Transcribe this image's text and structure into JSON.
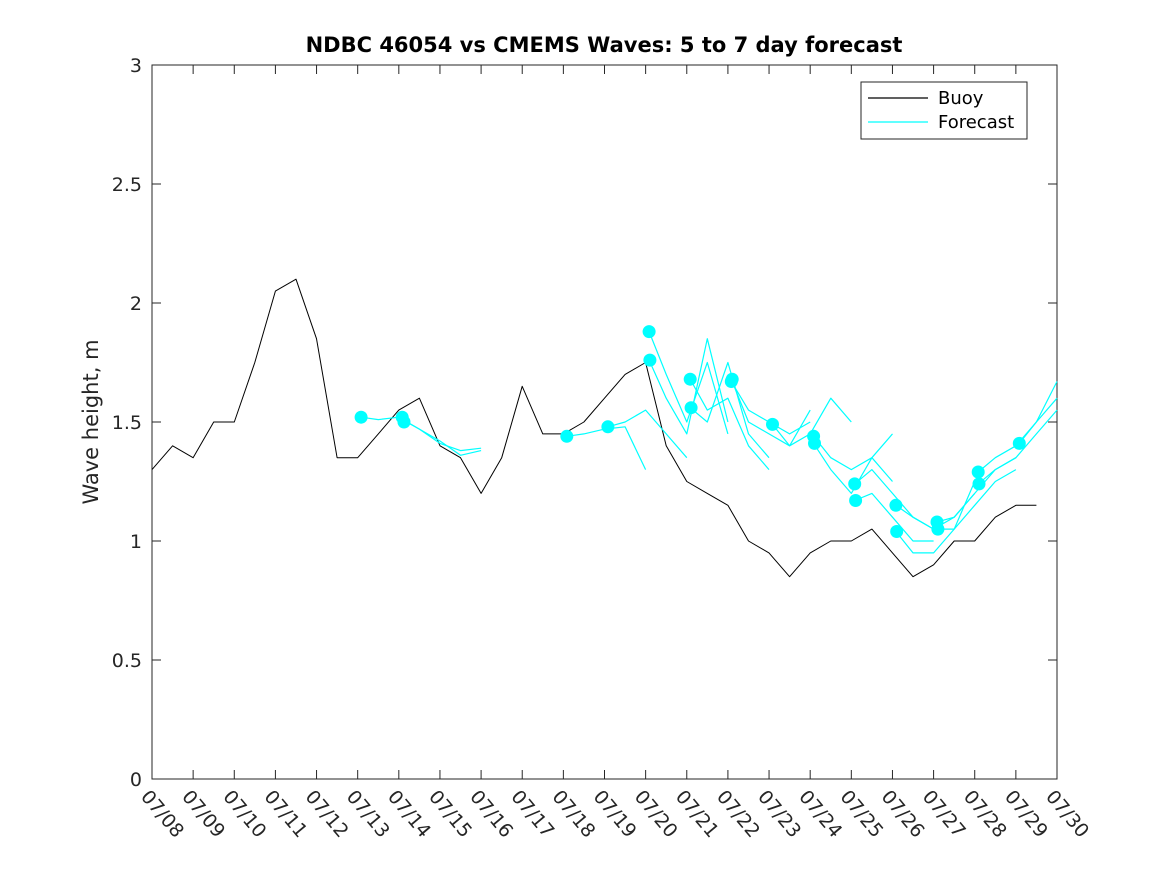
{
  "chart_data": {
    "type": "line",
    "title": "NDBC 46054 vs CMEMS Waves: 5 to 7 day forecast",
    "xlabel": "",
    "ylabel": "Wave height, m",
    "xlim": [
      "07/08",
      "07/30"
    ],
    "ylim": [
      0,
      3
    ],
    "x_ticks": [
      "07/08",
      "07/09",
      "07/10",
      "07/11",
      "07/12",
      "07/13",
      "07/14",
      "07/15",
      "07/16",
      "07/17",
      "07/18",
      "07/19",
      "07/20",
      "07/21",
      "07/22",
      "07/23",
      "07/24",
      "07/25",
      "07/26",
      "07/27",
      "07/28",
      "07/29",
      "07/30"
    ],
    "y_ticks": [
      "0",
      "0.5",
      "1",
      "1.5",
      "2",
      "2.5",
      "3"
    ],
    "legend": {
      "placement": "top-right",
      "entries": [
        "Buoy",
        "Forecast"
      ]
    },
    "colors": {
      "buoy": "#000000",
      "forecast": "#00ffff"
    },
    "series": [
      {
        "name": "Buoy",
        "x": [
          "07/08 00:00",
          "07/08 12:00",
          "07/09 00:00",
          "07/09 12:00",
          "07/10 00:00",
          "07/10 12:00",
          "07/11 00:00",
          "07/11 12:00",
          "07/12 00:00",
          "07/12 12:00",
          "07/13 00:00",
          "07/13 12:00",
          "07/14 00:00",
          "07/14 12:00",
          "07/15 00:00",
          "07/15 12:00",
          "07/16 00:00",
          "07/16 12:00",
          "07/17 00:00",
          "07/17 12:00",
          "07/18 00:00",
          "07/18 12:00",
          "07/19 00:00",
          "07/19 12:00",
          "07/20 00:00",
          "07/20 12:00",
          "07/21 00:00",
          "07/21 12:00",
          "07/22 00:00",
          "07/22 12:00",
          "07/23 00:00",
          "07/23 12:00",
          "07/24 00:00",
          "07/24 12:00",
          "07/25 00:00",
          "07/25 12:00",
          "07/26 00:00",
          "07/26 12:00",
          "07/27 00:00",
          "07/27 12:00",
          "07/28 00:00",
          "07/28 12:00",
          "07/29 00:00",
          "07/29 12:00"
        ],
        "y": [
          1.3,
          1.4,
          1.35,
          1.5,
          1.5,
          1.75,
          2.05,
          2.1,
          1.85,
          1.35,
          1.35,
          1.45,
          1.55,
          1.6,
          1.4,
          1.35,
          1.2,
          1.35,
          1.65,
          1.45,
          1.45,
          1.5,
          1.6,
          1.7,
          1.75,
          1.4,
          1.25,
          1.2,
          1.15,
          1.0,
          0.95,
          0.85,
          0.95,
          1.0,
          1.0,
          1.05,
          0.95,
          0.85,
          0.9,
          1.0,
          1.0,
          1.1,
          1.15,
          1.15
        ]
      },
      {
        "name": "",
        "x": [
          "07/13 02:00",
          "07/13 12:00",
          "07/14 00:00",
          "07/14 12:00",
          "07/15 00:00",
          "07/15 12:00",
          "07/16 00:00"
        ],
        "y": [
          1.52,
          1.51,
          1.52,
          1.47,
          1.42,
          1.36,
          1.38
        ]
      },
      {
        "name": "",
        "x": [
          "07/14 02:00",
          "07/14 12:00",
          "07/15 00:00",
          "07/15 12:00",
          "07/16 00:00"
        ],
        "y": [
          1.51,
          1.47,
          1.41,
          1.38,
          1.39
        ]
      },
      {
        "name": "",
        "x": [
          "07/18 02:00",
          "07/18 12:00",
          "07/19 00:00",
          "07/19 12:00",
          "07/20 00:00"
        ],
        "y": [
          1.44,
          1.45,
          1.47,
          1.48,
          1.3
        ]
      },
      {
        "name": "",
        "x": [
          "07/19 02:00",
          "07/19 12:00",
          "07/20 00:00",
          "07/20 12:00",
          "07/21 00:00"
        ],
        "y": [
          1.48,
          1.5,
          1.55,
          1.45,
          1.35
        ]
      },
      {
        "name": "",
        "x": [
          "07/20 02:00",
          "07/20 12:00",
          "07/21 00:00",
          "07/21 12:00",
          "07/22 00:00"
        ],
        "y": [
          1.88,
          1.7,
          1.5,
          1.75,
          1.45
        ]
      },
      {
        "name": "",
        "x": [
          "07/20 02:00",
          "07/20 12:00",
          "07/21 00:00",
          "07/21 12:00",
          "07/22 00:00"
        ],
        "y": [
          1.76,
          1.6,
          1.45,
          1.85,
          1.5
        ]
      },
      {
        "name": "",
        "x": [
          "07/21 02:00",
          "07/21 12:00",
          "07/22 00:00",
          "07/22 12:00",
          "07/23 00:00"
        ],
        "y": [
          1.68,
          1.55,
          1.6,
          1.4,
          1.3
        ]
      },
      {
        "name": "",
        "x": [
          "07/21 02:00",
          "07/21 12:00",
          "07/22 00:00",
          "07/22 12:00",
          "07/23 00:00"
        ],
        "y": [
          1.56,
          1.5,
          1.75,
          1.45,
          1.35
        ]
      },
      {
        "name": "",
        "x": [
          "07/22 02:00",
          "07/22 12:00",
          "07/23 00:00",
          "07/23 12:00",
          "07/24 00:00"
        ],
        "y": [
          1.67,
          1.55,
          1.5,
          1.45,
          1.5
        ]
      },
      {
        "name": "",
        "x": [
          "07/22 02:00",
          "07/22 12:00",
          "07/23 00:00",
          "07/23 12:00",
          "07/24 00:00"
        ],
        "y": [
          1.68,
          1.5,
          1.45,
          1.4,
          1.55
        ]
      },
      {
        "name": "",
        "x": [
          "07/23 02:00",
          "07/23 12:00",
          "07/24 00:00",
          "07/24 12:00",
          "07/25 00:00"
        ],
        "y": [
          1.49,
          1.4,
          1.45,
          1.6,
          1.5
        ]
      },
      {
        "name": "",
        "x": [
          "07/24 02:00",
          "07/24 12:00",
          "07/25 00:00",
          "07/25 12:00",
          "07/26 00:00"
        ],
        "y": [
          1.44,
          1.35,
          1.3,
          1.35,
          1.45
        ]
      },
      {
        "name": "",
        "x": [
          "07/24 02:00",
          "07/24 12:00",
          "07/25 00:00",
          "07/25 12:00",
          "07/26 00:00"
        ],
        "y": [
          1.41,
          1.3,
          1.2,
          1.35,
          1.25
        ]
      },
      {
        "name": "",
        "x": [
          "07/25 02:00",
          "07/25 12:00",
          "07/26 00:00",
          "07/26 12:00",
          "07/27 00:00"
        ],
        "y": [
          1.24,
          1.3,
          1.2,
          1.1,
          1.05
        ]
      },
      {
        "name": "",
        "x": [
          "07/25 02:00",
          "07/25 12:00",
          "07/26 00:00",
          "07/26 12:00",
          "07/27 00:00"
        ],
        "y": [
          1.17,
          1.2,
          1.1,
          1.0,
          1.0
        ]
      },
      {
        "name": "",
        "x": [
          "07/26 02:00",
          "07/26 12:00",
          "07/27 00:00",
          "07/27 12:00",
          "07/28 00:00"
        ],
        "y": [
          1.15,
          1.1,
          1.05,
          1.1,
          1.2
        ]
      },
      {
        "name": "",
        "x": [
          "07/26 02:00",
          "07/26 12:00",
          "07/27 00:00",
          "07/27 12:00",
          "07/28 00:00"
        ],
        "y": [
          1.04,
          0.95,
          0.95,
          1.05,
          1.25
        ]
      },
      {
        "name": "",
        "x": [
          "07/27 02:00",
          "07/27 12:00",
          "07/28 00:00",
          "07/28 12:00",
          "07/29 00:00"
        ],
        "y": [
          1.08,
          1.1,
          1.2,
          1.3,
          1.35
        ]
      },
      {
        "name": "",
        "x": [
          "07/27 02:00",
          "07/27 12:00",
          "07/28 00:00",
          "07/28 12:00",
          "07/29 00:00"
        ],
        "y": [
          1.05,
          1.05,
          1.15,
          1.25,
          1.3
        ]
      },
      {
        "name": "",
        "x": [
          "07/28 02:00",
          "07/28 12:00",
          "07/29 00:00",
          "07/29 12:00",
          "07/30 00:00"
        ],
        "y": [
          1.29,
          1.35,
          1.4,
          1.5,
          1.6
        ]
      },
      {
        "name": "",
        "x": [
          "07/28 02:00",
          "07/28 12:00",
          "07/29 00:00",
          "07/29 12:00",
          "07/30 00:00"
        ],
        "y": [
          1.24,
          1.3,
          1.35,
          1.45,
          1.55
        ]
      },
      {
        "name": "",
        "x": [
          "07/29 02:00",
          "07/29 12:00",
          "07/30 00:00"
        ],
        "y": [
          1.41,
          1.5,
          1.67
        ]
      }
    ],
    "markers": {
      "name": "Forecast",
      "x": [
        "07/13 02:00",
        "07/14 02:00",
        "07/14 03:00",
        "07/18 02:00",
        "07/19 02:00",
        "07/20 02:00",
        "07/20 02:30",
        "07/21 02:00",
        "07/21 02:30",
        "07/22 02:00",
        "07/22 02:30",
        "07/23 02:00",
        "07/24 02:00",
        "07/24 02:30",
        "07/25 02:00",
        "07/25 02:30",
        "07/26 02:00",
        "07/26 02:30",
        "07/27 02:00",
        "07/27 02:30",
        "07/28 02:00",
        "07/28 02:30",
        "07/29 02:00"
      ],
      "y": [
        1.52,
        1.52,
        1.5,
        1.44,
        1.48,
        1.88,
        1.76,
        1.68,
        1.56,
        1.67,
        1.68,
        1.49,
        1.44,
        1.41,
        1.24,
        1.17,
        1.15,
        1.04,
        1.08,
        1.05,
        1.29,
        1.24,
        1.41
      ]
    }
  }
}
